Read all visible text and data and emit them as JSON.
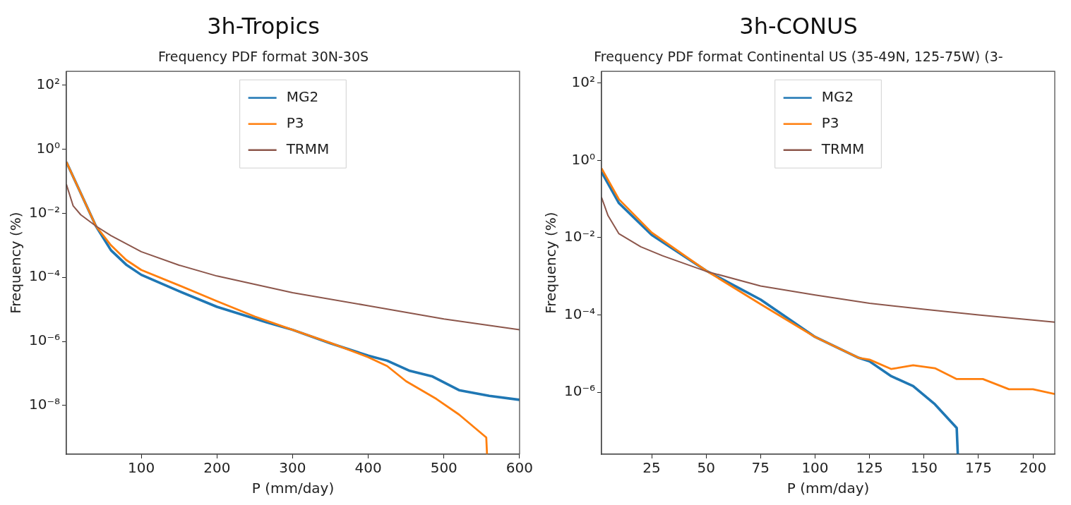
{
  "chart_data": [
    {
      "type": "line",
      "title": "3h-Tropics",
      "subtitle": "Frequency PDF format 30N-30S",
      "xlabel": "P (mm/day)",
      "ylabel": "Frequency (%)",
      "log": "y",
      "grid": false,
      "legend": "top",
      "marker": "none",
      "line_style": "solid",
      "xlim": [
        1,
        600
      ],
      "xticks": [
        100,
        200,
        300,
        400,
        500,
        600
      ],
      "ylim": [
        3e-10,
        270
      ],
      "yticks": [
        {
          "value": 100,
          "label": "10²"
        },
        {
          "value": 1,
          "label": "10⁰"
        },
        {
          "value": 0.01,
          "label": "10⁻²"
        },
        {
          "value": 0.0001,
          "label": "10⁻⁴"
        },
        {
          "value": 1e-06,
          "label": "10⁻⁶"
        },
        {
          "value": 1e-08,
          "label": "10⁻⁸"
        }
      ],
      "series": [
        {
          "name": "MG2",
          "color": "#1f77b4",
          "x": [
            1,
            40,
            60,
            80,
            100,
            150,
            200,
            265,
            300,
            350,
            400,
            425,
            455,
            485,
            520,
            560,
            600
          ],
          "values": [
            0.4,
            0.004,
            0.0007,
            0.00025,
            0.00012,
            3.7e-05,
            1.2e-05,
            4e-06,
            2.3e-06,
            8.7e-07,
            3.6e-07,
            2.5e-07,
            1.2e-07,
            8e-08,
            3e-08,
            2e-08,
            1.5e-08
          ]
        },
        {
          "name": "P3",
          "color": "#ff7f0e",
          "x": [
            1,
            40,
            60,
            80,
            100,
            150,
            200,
            250,
            300,
            350,
            400,
            425,
            450,
            490,
            520,
            556,
            557
          ],
          "values": [
            0.4,
            0.004,
            0.001,
            0.00035,
            0.00017,
            5.6e-05,
            1.8e-05,
            6e-06,
            2.3e-06,
            9e-07,
            3.2e-07,
            1.7e-07,
            5.7e-08,
            1.6e-08,
            5.2e-09,
            1e-09,
            3e-10
          ]
        },
        {
          "name": "TRMM",
          "color": "#8c564b",
          "x": [
            1,
            10,
            20,
            40,
            60,
            100,
            150,
            200,
            300,
            400,
            500,
            600
          ],
          "values": [
            0.08,
            0.017,
            0.009,
            0.004,
            0.002,
            0.00063,
            0.00024,
            0.00011,
            3.3e-05,
            1.3e-05,
            5e-06,
            2.3e-06
          ]
        }
      ]
    },
    {
      "type": "line",
      "title": "3h-CONUS",
      "subtitle": "Frequency PDF format Continental US (35-49N, 125-75W) (3-",
      "xlabel": "P (mm/day)",
      "ylabel": "Frequency (%)",
      "log": "y",
      "grid": false,
      "legend": "top",
      "marker": "none",
      "line_style": "solid",
      "xlim": [
        2,
        210
      ],
      "xticks": [
        25,
        50,
        75,
        100,
        125,
        150,
        175,
        200
      ],
      "ylim": [
        2.5e-08,
        200
      ],
      "yticks": [
        {
          "value": 100,
          "label": "10²"
        },
        {
          "value": 1,
          "label": "10⁰"
        },
        {
          "value": 0.01,
          "label": "10⁻²"
        },
        {
          "value": 0.0001,
          "label": "10⁻⁴"
        },
        {
          "value": 1e-06,
          "label": "10⁻⁶"
        }
      ],
      "series": [
        {
          "name": "MG2",
          "color": "#1f77b4",
          "x": [
            2,
            10,
            25,
            50,
            75,
            100,
            120,
            125,
            135,
            145,
            155,
            165,
            165.5
          ],
          "values": [
            0.5,
            0.078,
            0.0118,
            0.0014,
            0.00025,
            2.7e-05,
            7.8e-06,
            6.3e-06,
            2.6e-06,
            1.45e-06,
            4.9e-07,
            1.2e-07,
            2.5e-08
          ]
        },
        {
          "name": "P3",
          "color": "#ff7f0e",
          "x": [
            2,
            10,
            25,
            50,
            75,
            100,
            120,
            125,
            135,
            145,
            155,
            165,
            177,
            189,
            200,
            210
          ],
          "values": [
            0.62,
            0.098,
            0.0136,
            0.0014,
            0.00019,
            2.7e-05,
            7.8e-06,
            7e-06,
            4e-06,
            5e-06,
            4.2e-06,
            2.2e-06,
            2.2e-06,
            1.2e-06,
            1.2e-06,
            9e-07
          ]
        },
        {
          "name": "TRMM",
          "color": "#8c564b",
          "x": [
            2,
            5,
            10,
            20,
            30,
            50,
            75,
            100,
            125,
            150,
            175,
            210
          ],
          "values": [
            0.11,
            0.037,
            0.0126,
            0.0058,
            0.0034,
            0.00135,
            0.00056,
            0.00033,
            0.0002,
            0.00014,
            0.0001,
            6.5e-05
          ]
        }
      ]
    }
  ]
}
